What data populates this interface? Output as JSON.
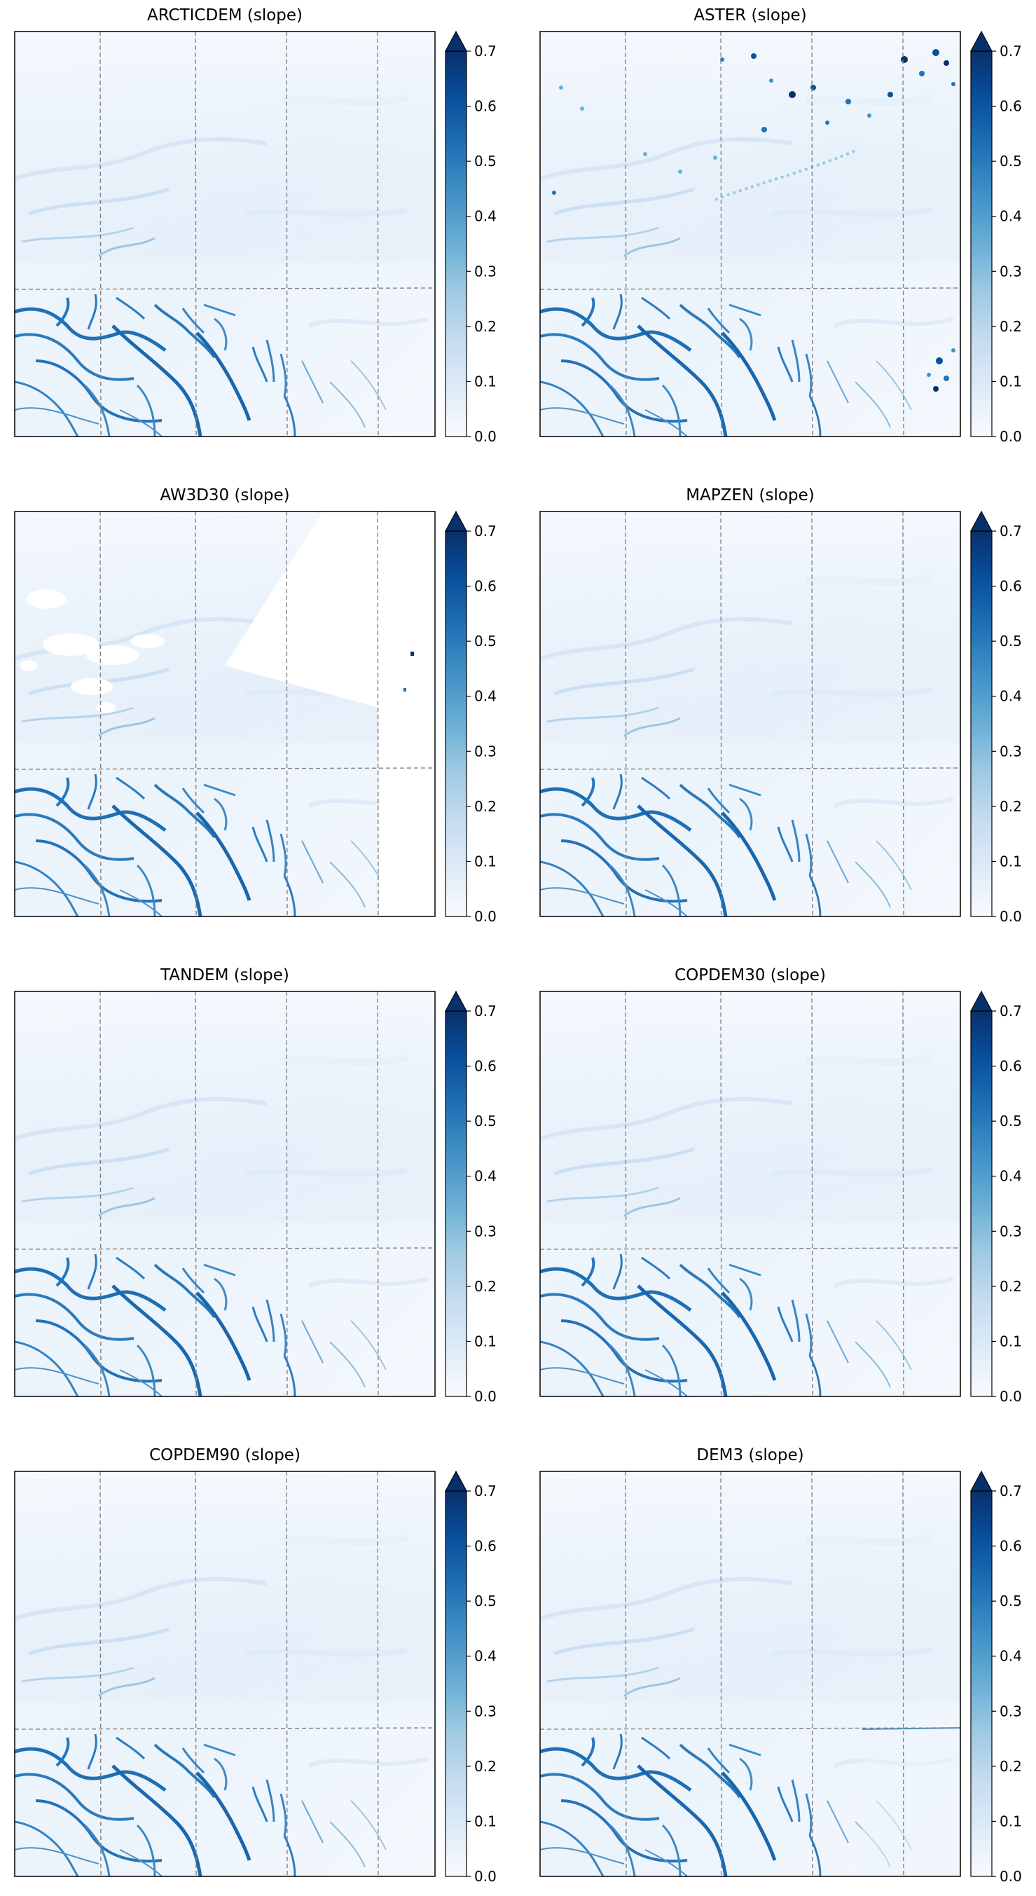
{
  "figure": {
    "layout": "4 rows x 2 columns of map panels with colorbars",
    "gridlines": "dashed grey",
    "panels": [
      {
        "title": "ARCTICDEM (slope)",
        "features": "clean"
      },
      {
        "title": "ASTER (slope)",
        "features": "noisy speckles in upper right and right edge"
      },
      {
        "title": "AW3D30 (slope)",
        "features": "white voids in upper left and diagonal no-data stripe on right"
      },
      {
        "title": "MAPZEN (slope)",
        "features": "clean"
      },
      {
        "title": "TANDEM (slope)",
        "features": "clean"
      },
      {
        "title": "COPDEM30 (slope)",
        "features": "clean"
      },
      {
        "title": "COPDEM90 (slope)",
        "features": "clean"
      },
      {
        "title": "DEM3 (slope)",
        "features": "tile seam line on lower right"
      }
    ]
  },
  "colorbar": {
    "colormap": "Blues",
    "extend": "max",
    "range": [
      0.0,
      0.7
    ],
    "ticks": [
      "0.0",
      "0.1",
      "0.2",
      "0.3",
      "0.4",
      "0.5",
      "0.6",
      "0.7"
    ],
    "colors": [
      "#f7fbff",
      "#deebf7",
      "#c6dbef",
      "#9ecae1",
      "#6baed6",
      "#4292c6",
      "#2171b5",
      "#08519c",
      "#08306b"
    ]
  }
}
